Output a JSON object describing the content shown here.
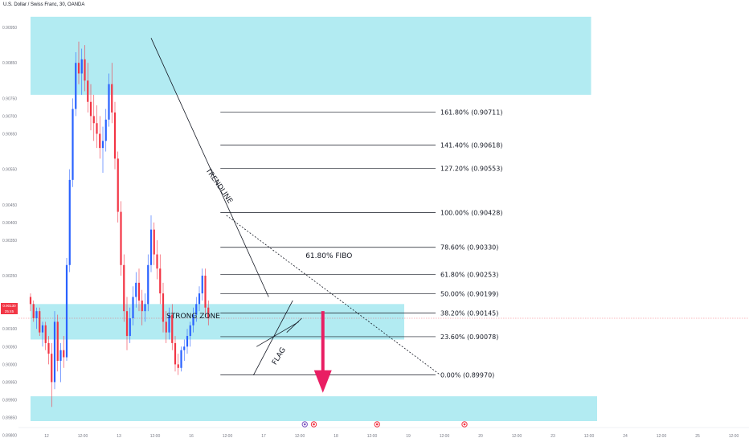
{
  "chart_title": "U.S. Dollar / Swiss Franc, 30, OANDA",
  "price_tag": {
    "price": "0.90130",
    "countdown": "25:45"
  },
  "colors": {
    "zone": "#b2ebf2",
    "up": "#2962ff",
    "down": "#f23645",
    "arrow": "#e91e63",
    "line": "#131722"
  },
  "chart_data": {
    "type": "candlestick",
    "ylim": [
      0.8984,
      0.91
    ],
    "y_ticks": [
      {
        "label": "0.90950",
        "value": 0.9095
      },
      {
        "label": "0.90850",
        "value": 0.9085
      },
      {
        "label": "0.90750",
        "value": 0.9075
      },
      {
        "label": "0.90700",
        "value": 0.907
      },
      {
        "label": "0.90650",
        "value": 0.9065
      },
      {
        "label": "0.90550",
        "value": 0.9055
      },
      {
        "label": "0.90450",
        "value": 0.9045
      },
      {
        "label": "0.90400",
        "value": 0.904
      },
      {
        "label": "0.90350",
        "value": 0.9035
      },
      {
        "label": "0.90250",
        "value": 0.9025
      },
      {
        "label": "0.90150",
        "value": 0.9015
      },
      {
        "label": "0.90100",
        "value": 0.901
      },
      {
        "label": "0.90050",
        "value": 0.9005
      },
      {
        "label": "0.90000",
        "value": 0.9
      },
      {
        "label": "0.89950",
        "value": 0.8995
      },
      {
        "label": "0.89900",
        "value": 0.899
      },
      {
        "label": "0.89850",
        "value": 0.8985
      },
      {
        "label": "0.89800",
        "value": 0.898
      }
    ],
    "x_ticks": [
      "12",
      "12:00",
      "13",
      "12:00",
      "16",
      "12:00",
      "17",
      "12:00",
      "18",
      "12:00",
      "19",
      "12:00",
      "20",
      "12:00",
      "23",
      "12:00",
      "24",
      "12:00",
      "25",
      "12:00"
    ],
    "x_tick_positions": [
      0,
      12,
      24,
      36,
      48,
      60,
      72,
      84,
      96,
      108,
      120,
      132,
      144,
      156,
      168,
      180,
      192,
      204,
      216,
      228
    ],
    "candles": [
      [
        0.9019,
        0.902,
        0.9015,
        0.9017
      ],
      [
        0.9017,
        0.9018,
        0.9012,
        0.9013
      ],
      [
        0.9013,
        0.9016,
        0.901,
        0.9015
      ],
      [
        0.9015,
        0.9016,
        0.9008,
        0.9009
      ],
      [
        0.9009,
        0.9012,
        0.9005,
        0.9011
      ],
      [
        0.9011,
        0.9012,
        0.9004,
        0.9006
      ],
      [
        0.9006,
        0.9008,
        0.9,
        0.9003
      ],
      [
        0.9003,
        0.9006,
        0.8988,
        0.8995
      ],
      [
        0.8995,
        0.9015,
        0.8993,
        0.9012
      ],
      [
        0.9012,
        0.9014,
        0.8998,
        0.9001
      ],
      [
        0.9001,
        0.9006,
        0.8995,
        0.9004
      ],
      [
        0.9004,
        0.9008,
        0.8999,
        0.9002
      ],
      [
        0.9002,
        0.903,
        0.9001,
        0.9028
      ],
      [
        0.9028,
        0.9055,
        0.9026,
        0.9052
      ],
      [
        0.9052,
        0.9075,
        0.905,
        0.9072
      ],
      [
        0.9072,
        0.9088,
        0.907,
        0.9085
      ],
      [
        0.9085,
        0.9091,
        0.9079,
        0.9082
      ],
      [
        0.9082,
        0.9089,
        0.9076,
        0.9086
      ],
      [
        0.9086,
        0.909,
        0.9077,
        0.908
      ],
      [
        0.908,
        0.9085,
        0.9071,
        0.9074
      ],
      [
        0.9074,
        0.9079,
        0.9066,
        0.907
      ],
      [
        0.907,
        0.9076,
        0.9063,
        0.9068
      ],
      [
        0.9068,
        0.9073,
        0.9061,
        0.9065
      ],
      [
        0.9065,
        0.907,
        0.9058,
        0.9061
      ],
      [
        0.9061,
        0.9067,
        0.9054,
        0.9063
      ],
      [
        0.9063,
        0.9072,
        0.906,
        0.9069
      ],
      [
        0.9069,
        0.9082,
        0.9067,
        0.9079
      ],
      [
        0.9079,
        0.9085,
        0.9068,
        0.9071
      ],
      [
        0.9071,
        0.9074,
        0.9055,
        0.9058
      ],
      [
        0.9058,
        0.906,
        0.904,
        0.9043
      ],
      [
        0.9043,
        0.9046,
        0.9025,
        0.9028
      ],
      [
        0.9028,
        0.9031,
        0.9012,
        0.9015
      ],
      [
        0.9015,
        0.9019,
        0.9004,
        0.9008
      ],
      [
        0.9008,
        0.9016,
        0.9006,
        0.9013
      ],
      [
        0.9013,
        0.9022,
        0.9011,
        0.9019
      ],
      [
        0.9019,
        0.9026,
        0.9016,
        0.9023
      ],
      [
        0.9023,
        0.9027,
        0.9015,
        0.9018
      ],
      [
        0.9018,
        0.9021,
        0.9011,
        0.9015
      ],
      [
        0.9015,
        0.902,
        0.9012,
        0.9017
      ],
      [
        0.9017,
        0.9031,
        0.9015,
        0.9028
      ],
      [
        0.9028,
        0.9042,
        0.9026,
        0.9038
      ],
      [
        0.9038,
        0.904,
        0.9028,
        0.9031
      ],
      [
        0.9031,
        0.9035,
        0.9024,
        0.9027
      ],
      [
        0.9027,
        0.9031,
        0.9017,
        0.902
      ],
      [
        0.902,
        0.9023,
        0.9009,
        0.9012
      ],
      [
        0.9012,
        0.9015,
        0.9006,
        0.9009
      ],
      [
        0.9009,
        0.9016,
        0.9007,
        0.9014
      ],
      [
        0.9014,
        0.9017,
        0.9004,
        0.9006
      ],
      [
        0.9006,
        0.9008,
        0.8998,
        0.9
      ],
      [
        0.9,
        0.9003,
        0.8997,
        0.8999
      ],
      [
        0.8999,
        0.9005,
        0.8998,
        0.9004
      ],
      [
        0.9004,
        0.9007,
        0.9001,
        0.9005
      ],
      [
        0.9005,
        0.901,
        0.9003,
        0.9008
      ],
      [
        0.9008,
        0.9012,
        0.9005,
        0.9011
      ],
      [
        0.9011,
        0.9016,
        0.9009,
        0.9014
      ],
      [
        0.9014,
        0.9019,
        0.9012,
        0.9017
      ],
      [
        0.9017,
        0.9022,
        0.9015,
        0.902
      ],
      [
        0.902,
        0.9027,
        0.9018,
        0.9025
      ],
      [
        0.9025,
        0.9027,
        0.9014,
        0.9016
      ],
      [
        0.9016,
        0.9018,
        0.9011,
        0.9013
      ]
    ],
    "zones": [
      {
        "x0": 0,
        "x1": 186,
        "y0": 0.9076,
        "y1": 0.9098
      },
      {
        "x0": 0,
        "x1": 124,
        "y0": 0.9007,
        "y1": 0.9017
      },
      {
        "x0": 0,
        "x1": 188,
        "y0": 0.8984,
        "y1": 0.8991
      }
    ],
    "fib_levels": [
      {
        "label": "161.80% (0.90711)",
        "value": 0.90711
      },
      {
        "label": "141.40% (0.90618)",
        "value": 0.90618
      },
      {
        "label": "127.20% (0.90553)",
        "value": 0.90553
      },
      {
        "label": "100.00% (0.90428)",
        "value": 0.90428
      },
      {
        "label": "78.60% (0.90330)",
        "value": 0.9033
      },
      {
        "label": "61.80% (0.90253)",
        "value": 0.90253
      },
      {
        "label": "50.00% (0.90199)",
        "value": 0.90199
      },
      {
        "label": "38.20% (0.90145)",
        "value": 0.90145
      },
      {
        "label": "23.60% (0.90078)",
        "value": 0.90078
      },
      {
        "label": "0.00% (0.89970)",
        "value": 0.8997
      }
    ],
    "fib_range": {
      "x0": 63,
      "x1": 136
    },
    "current_price": 0.9013,
    "annotations": [
      {
        "text": "TRENDLINE",
        "x": 62,
        "y": 0.905
      },
      {
        "text": "STRONG ZONE",
        "x": 54,
        "y": 0.9013
      },
      {
        "text": "FLAG",
        "x": 83,
        "y": 0.9002
      },
      {
        "text": "61.80% FIBO",
        "x": 99,
        "y": 0.903
      }
    ],
    "trendlines": [
      {
        "x0": 40,
        "y0": 0.9092,
        "x1": 79,
        "y1": 0.9019,
        "style": "solid"
      },
      {
        "x0": 65,
        "y0": 0.9042,
        "x1": 136,
        "y1": 0.8997,
        "style": "dashed"
      },
      {
        "x0": 74,
        "y0": 0.8997,
        "x1": 87,
        "y1": 0.9018,
        "style": "solid"
      },
      {
        "x0": 75,
        "y0": 0.9005,
        "x1": 89,
        "y1": 0.9012,
        "style": "solid"
      },
      {
        "x0": 85,
        "y0": 0.9009,
        "x1": 90,
        "y1": 0.9013,
        "style": "solid"
      }
    ],
    "arrow": {
      "x": 97,
      "y_from": 0.9015,
      "y_to": 0.8992
    }
  }
}
